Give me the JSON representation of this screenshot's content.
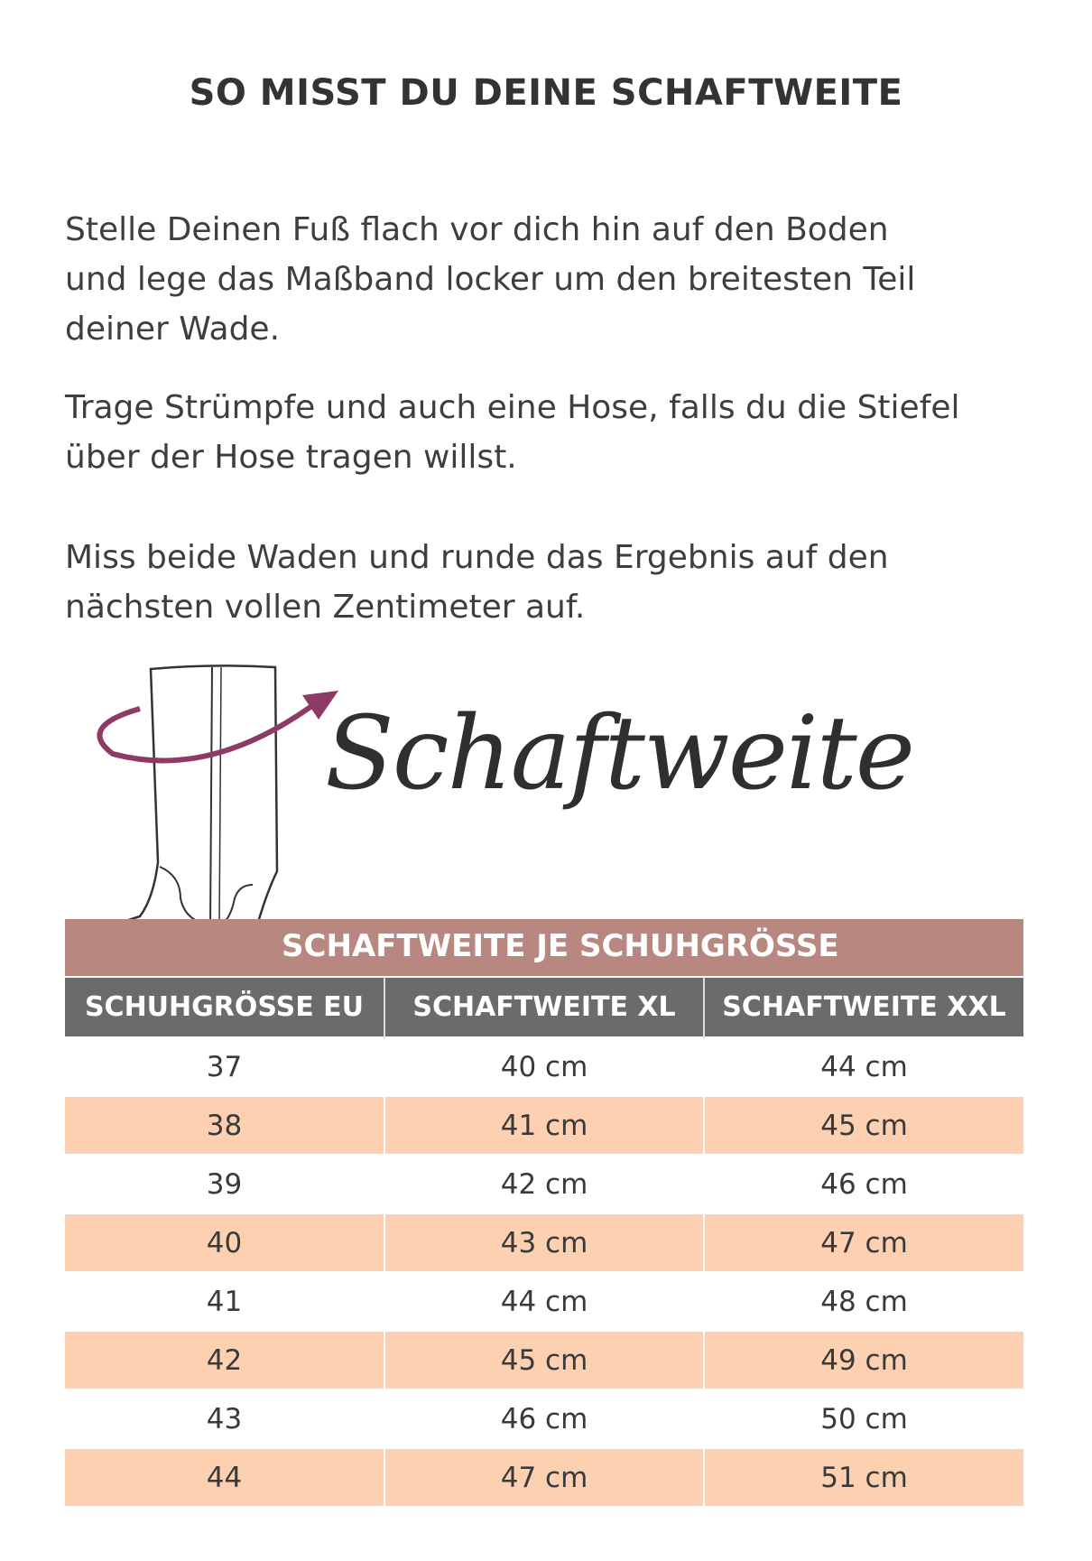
{
  "title": "SO MISST DU DEINE SCHAFTWEITE",
  "paragraphs": [
    [
      "Stelle Deinen Fuß flach vor dich hin auf den Boden",
      "und lege das Maßband locker um den breitesten Teil",
      "deiner Wade."
    ],
    [
      "Trage Strümpfe und auch eine Hose, falls du die Stiefel",
      "über der Hose tragen willst."
    ],
    [
      "Miss beide Waden und runde das Ergebnis auf den",
      "nächsten vollen Zentimeter auf."
    ]
  ],
  "illustration": {
    "script_text": "Schaftweite",
    "icon": "boot-with-arrow-icon",
    "arrow_color": "#8e3a66"
  },
  "table": {
    "caption": "SCHAFTWEITE JE SCHUHGRÖSSE",
    "headers": [
      "SCHUHGRÖSSE EU",
      "SCHAFTWEITE XL",
      "SCHAFTWEITE XXL"
    ],
    "rows": [
      [
        "37",
        "40 cm",
        "44 cm"
      ],
      [
        "38",
        "41 cm",
        "45 cm"
      ],
      [
        "39",
        "42 cm",
        "46 cm"
      ],
      [
        "40",
        "43 cm",
        "47 cm"
      ],
      [
        "41",
        "44 cm",
        "48 cm"
      ],
      [
        "42",
        "45 cm",
        "49 cm"
      ],
      [
        "43",
        "46 cm",
        "50 cm"
      ],
      [
        "44",
        "47 cm",
        "51 cm"
      ]
    ],
    "colors": {
      "caption_bg": "#b8877f",
      "header_bg": "#6b6b6b",
      "alt_row_bg": "#fdd0b1"
    }
  }
}
